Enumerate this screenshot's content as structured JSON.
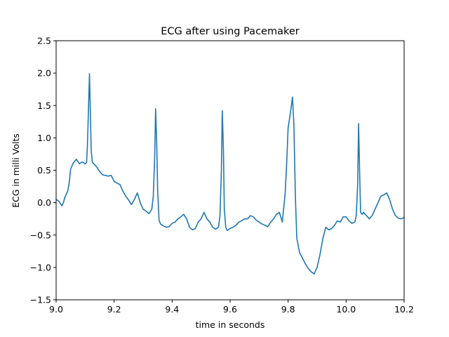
{
  "chart_data": {
    "type": "line",
    "title": "ECG after using Pacemaker",
    "xlabel": "time in seconds",
    "ylabel": "ECG in milli Volts",
    "xlim": [
      9.0,
      10.2
    ],
    "ylim": [
      -1.5,
      2.5
    ],
    "x_ticks": [
      "9.0",
      "9.2",
      "9.4",
      "9.6",
      "9.8",
      "10.0",
      "10.2"
    ],
    "y_ticks": [
      "2.5",
      "2.0",
      "1.5",
      "1.0",
      "0.5",
      "0.0",
      "−0.5",
      "−1.0",
      "−1.5"
    ],
    "grid": false,
    "color": "#1f77b4",
    "series": [
      {
        "x": [
          9.0,
          9.01,
          9.02,
          9.025,
          9.03,
          9.04,
          9.045,
          9.05,
          9.06,
          9.07,
          9.08,
          9.09,
          9.1,
          9.105,
          9.108,
          9.112,
          9.115,
          9.118,
          9.121,
          9.125,
          9.13,
          9.14,
          9.15,
          9.16,
          9.17,
          9.18,
          9.19,
          9.2,
          9.21,
          9.22,
          9.23,
          9.24,
          9.25,
          9.26,
          9.27,
          9.28,
          9.29,
          9.3,
          9.31,
          9.32,
          9.33,
          9.335,
          9.34,
          9.343,
          9.347,
          9.35,
          9.355,
          9.36,
          9.37,
          9.38,
          9.39,
          9.4,
          9.41,
          9.42,
          9.43,
          9.44,
          9.45,
          9.46,
          9.47,
          9.48,
          9.49,
          9.5,
          9.51,
          9.52,
          9.53,
          9.54,
          9.55,
          9.56,
          9.565,
          9.57,
          9.573,
          9.577,
          9.58,
          9.585,
          9.59,
          9.6,
          9.61,
          9.62,
          9.63,
          9.64,
          9.65,
          9.66,
          9.67,
          9.68,
          9.69,
          9.7,
          9.71,
          9.72,
          9.73,
          9.74,
          9.75,
          9.76,
          9.77,
          9.78,
          9.79,
          9.795,
          9.8,
          9.805,
          9.81,
          9.815,
          9.82,
          9.825,
          9.83,
          9.84,
          9.85,
          9.86,
          9.87,
          9.88,
          9.89,
          9.9,
          9.91,
          9.92,
          9.93,
          9.94,
          9.95,
          9.96,
          9.97,
          9.98,
          9.99,
          10.0,
          10.01,
          10.02,
          10.03,
          10.035,
          10.04,
          10.043,
          10.047,
          10.05,
          10.055,
          10.06,
          10.07,
          10.08,
          10.09,
          10.1,
          10.11,
          10.12,
          10.13,
          10.14,
          10.15,
          10.16,
          10.17,
          10.18,
          10.19,
          10.2
        ],
        "y": [
          0.05,
          0.02,
          -0.05,
          0.0,
          0.08,
          0.18,
          0.3,
          0.52,
          0.62,
          0.67,
          0.6,
          0.63,
          0.6,
          0.62,
          0.9,
          1.5,
          1.99,
          1.4,
          0.8,
          0.62,
          0.6,
          0.55,
          0.48,
          0.43,
          0.42,
          0.41,
          0.42,
          0.33,
          0.3,
          0.28,
          0.18,
          0.1,
          0.04,
          -0.03,
          0.05,
          0.15,
          0.0,
          -0.1,
          -0.13,
          -0.17,
          -0.1,
          0.1,
          0.7,
          1.45,
          0.9,
          0.2,
          -0.27,
          -0.33,
          -0.36,
          -0.38,
          -0.37,
          -0.32,
          -0.3,
          -0.25,
          -0.22,
          -0.18,
          -0.25,
          -0.38,
          -0.42,
          -0.4,
          -0.3,
          -0.25,
          -0.15,
          -0.25,
          -0.3,
          -0.38,
          -0.41,
          -0.38,
          -0.2,
          0.5,
          1.42,
          0.8,
          -0.1,
          -0.38,
          -0.43,
          -0.4,
          -0.38,
          -0.35,
          -0.3,
          -0.28,
          -0.25,
          -0.25,
          -0.2,
          -0.22,
          -0.27,
          -0.3,
          -0.33,
          -0.35,
          -0.37,
          -0.3,
          -0.25,
          -0.18,
          -0.15,
          -0.3,
          0.15,
          0.6,
          1.15,
          1.3,
          1.45,
          1.63,
          1.2,
          0.1,
          -0.55,
          -0.78,
          -0.86,
          -0.95,
          -1.02,
          -1.07,
          -1.1,
          -1.0,
          -0.8,
          -0.55,
          -0.38,
          -0.42,
          -0.4,
          -0.35,
          -0.28,
          -0.3,
          -0.22,
          -0.22,
          -0.28,
          -0.32,
          -0.3,
          -0.2,
          0.3,
          1.22,
          0.4,
          -0.15,
          -0.18,
          -0.15,
          -0.2,
          -0.25,
          -0.2,
          -0.1,
          0.0,
          0.1,
          0.12,
          0.15,
          0.05,
          -0.1,
          -0.2,
          -0.24,
          -0.25,
          -0.23
        ]
      }
    ]
  }
}
